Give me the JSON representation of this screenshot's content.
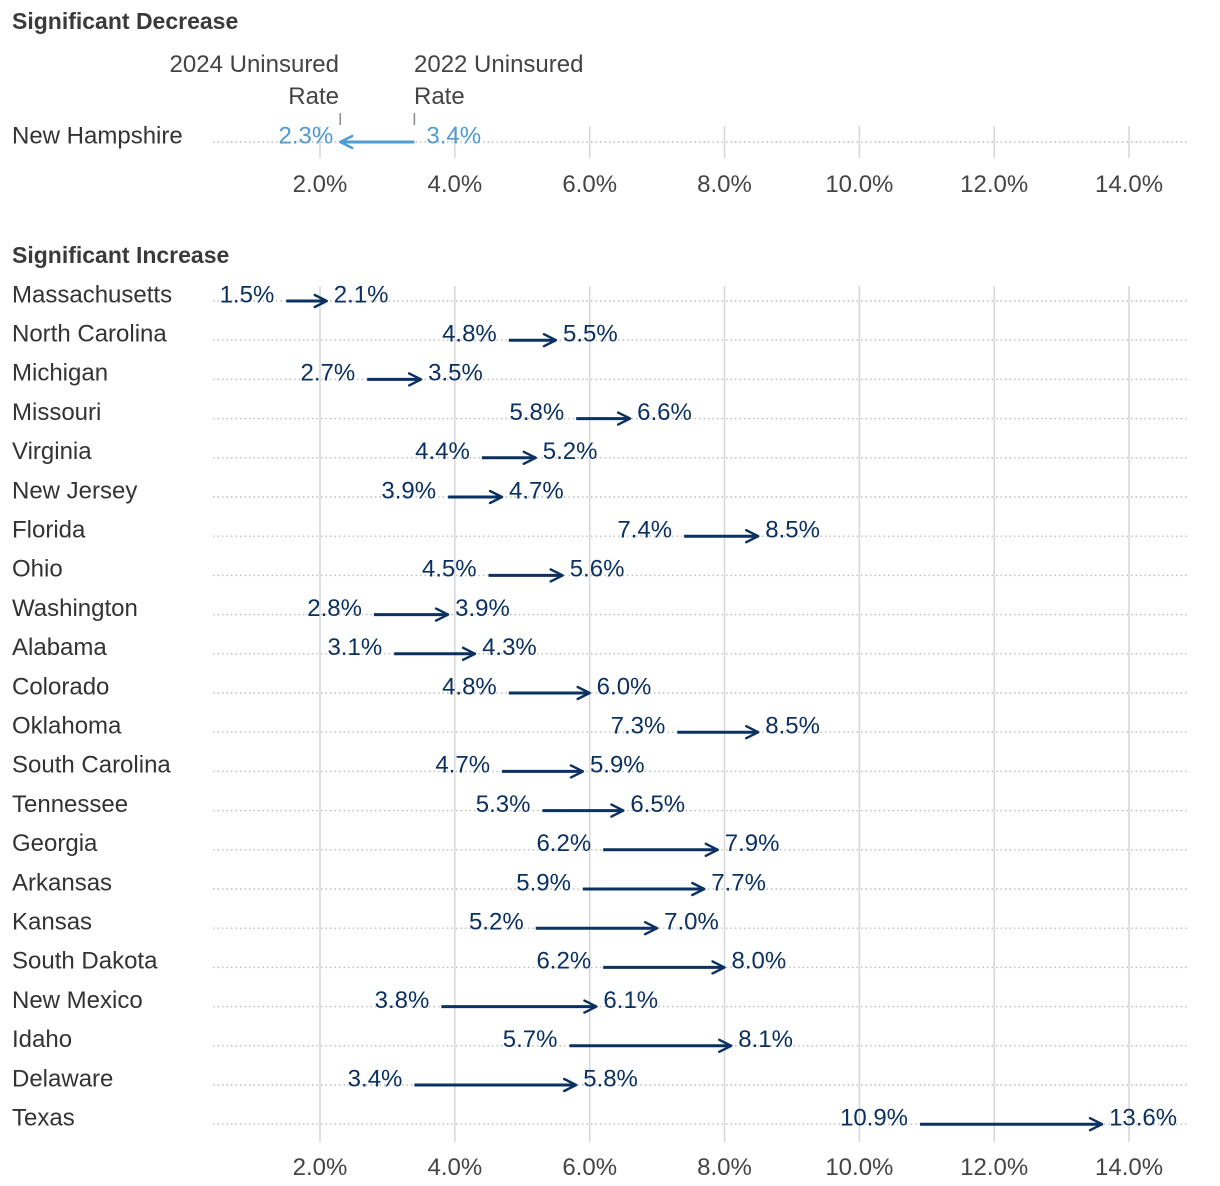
{
  "colors": {
    "increase": "#0b3161",
    "decrease": "#4f9bd3",
    "grid": "#d6d6d6",
    "dots": "#bdbdbd",
    "legend_tick": "#8a8a8a"
  },
  "chart_data": [
    {
      "type": "dumbbell-arrow",
      "title": "Significant Decrease",
      "legend": {
        "end_label": [
          "2024 Uninsured",
          "Rate"
        ],
        "start_label": [
          "2022 Uninsured",
          "Rate"
        ]
      },
      "x_ticks": [
        2,
        4,
        6,
        8,
        10,
        12,
        14
      ],
      "x_tick_labels": [
        "2.0%",
        "4.0%",
        "6.0%",
        "8.0%",
        "10.0%",
        "12.0%",
        "14.0%"
      ],
      "rows": [
        {
          "state": "New Hampshire",
          "from": 3.4,
          "to": 2.3,
          "from_label": "3.4%",
          "to_label": "2.3%"
        }
      ]
    },
    {
      "type": "dumbbell-arrow",
      "title": "Significant Increase",
      "x_ticks": [
        2,
        4,
        6,
        8,
        10,
        12,
        14
      ],
      "x_tick_labels": [
        "2.0%",
        "4.0%",
        "6.0%",
        "8.0%",
        "10.0%",
        "12.0%",
        "14.0%"
      ],
      "rows": [
        {
          "state": "Massachusetts",
          "from": 1.5,
          "to": 2.1,
          "from_label": "1.5%",
          "to_label": "2.1%"
        },
        {
          "state": "North Carolina",
          "from": 4.8,
          "to": 5.5,
          "from_label": "4.8%",
          "to_label": "5.5%"
        },
        {
          "state": "Michigan",
          "from": 2.7,
          "to": 3.5,
          "from_label": "2.7%",
          "to_label": "3.5%"
        },
        {
          "state": "Missouri",
          "from": 5.8,
          "to": 6.6,
          "from_label": "5.8%",
          "to_label": "6.6%"
        },
        {
          "state": "Virginia",
          "from": 4.4,
          "to": 5.2,
          "from_label": "4.4%",
          "to_label": "5.2%"
        },
        {
          "state": "New Jersey",
          "from": 3.9,
          "to": 4.7,
          "from_label": "3.9%",
          "to_label": "4.7%"
        },
        {
          "state": "Florida",
          "from": 7.4,
          "to": 8.5,
          "from_label": "7.4%",
          "to_label": "8.5%"
        },
        {
          "state": "Ohio",
          "from": 4.5,
          "to": 5.6,
          "from_label": "4.5%",
          "to_label": "5.6%"
        },
        {
          "state": "Washington",
          "from": 2.8,
          "to": 3.9,
          "from_label": "2.8%",
          "to_label": "3.9%"
        },
        {
          "state": "Alabama",
          "from": 3.1,
          "to": 4.3,
          "from_label": "3.1%",
          "to_label": "4.3%"
        },
        {
          "state": "Colorado",
          "from": 4.8,
          "to": 6.0,
          "from_label": "4.8%",
          "to_label": "6.0%"
        },
        {
          "state": "Oklahoma",
          "from": 7.3,
          "to": 8.5,
          "from_label": "7.3%",
          "to_label": "8.5%"
        },
        {
          "state": "South Carolina",
          "from": 4.7,
          "to": 5.9,
          "from_label": "4.7%",
          "to_label": "5.9%"
        },
        {
          "state": "Tennessee",
          "from": 5.3,
          "to": 6.5,
          "from_label": "5.3%",
          "to_label": "6.5%"
        },
        {
          "state": "Georgia",
          "from": 6.2,
          "to": 7.9,
          "from_label": "6.2%",
          "to_label": "7.9%"
        },
        {
          "state": "Arkansas",
          "from": 5.9,
          "to": 7.7,
          "from_label": "5.9%",
          "to_label": "7.7%"
        },
        {
          "state": "Kansas",
          "from": 5.2,
          "to": 7.0,
          "from_label": "5.2%",
          "to_label": "7.0%"
        },
        {
          "state": "South Dakota",
          "from": 6.2,
          "to": 8.0,
          "from_label": "6.2%",
          "to_label": "8.0%"
        },
        {
          "state": "New Mexico",
          "from": 3.8,
          "to": 6.1,
          "from_label": "3.8%",
          "to_label": "6.1%"
        },
        {
          "state": "Idaho",
          "from": 5.7,
          "to": 8.1,
          "from_label": "5.7%",
          "to_label": "8.1%"
        },
        {
          "state": "Delaware",
          "from": 3.4,
          "to": 5.8,
          "from_label": "3.4%",
          "to_label": "5.8%"
        },
        {
          "state": "Texas",
          "from": 10.9,
          "to": 13.6,
          "from_label": "10.9%",
          "to_label": "13.6%"
        }
      ]
    }
  ]
}
